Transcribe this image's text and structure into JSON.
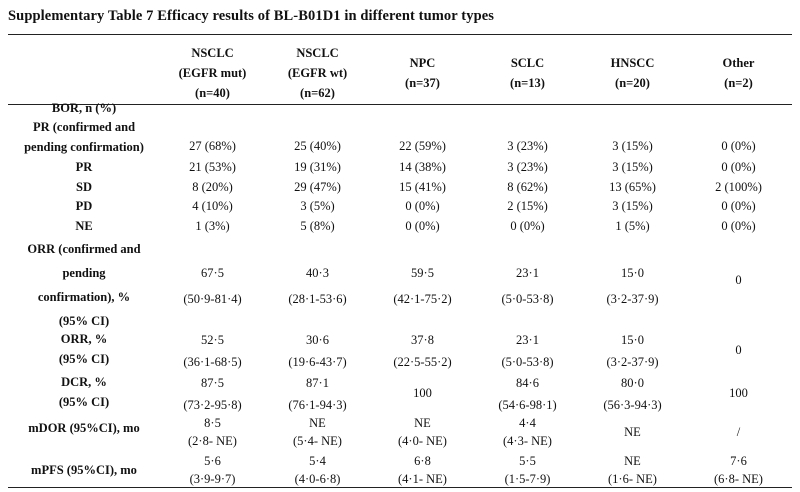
{
  "title": "Supplementary Table 7 Efficacy results of BL-B01D1 in different tumor types",
  "columns": [
    [
      "NSCLC",
      "(EGFR mut)",
      "(n=40)"
    ],
    [
      "NSCLC",
      "(EGFR wt)",
      "(n=62)"
    ],
    [
      "NPC",
      "(n=37)"
    ],
    [
      "SCLC",
      "(n=13)"
    ],
    [
      "HNSCC",
      "(n=20)"
    ],
    [
      "Other",
      "(n=2)"
    ]
  ],
  "rows": [
    {
      "label": [
        "BOR, n (%)"
      ],
      "cells": [
        [],
        [],
        [],
        [],
        [],
        []
      ]
    },
    {
      "label": [
        "PR (confirmed and",
        "pending confirmation)"
      ],
      "cells": [
        [
          "27 (68%)"
        ],
        [
          "25 (40%)"
        ],
        [
          "22 (59%)"
        ],
        [
          "3 (23%)"
        ],
        [
          "3 (15%)"
        ],
        [
          "0 (0%)"
        ]
      ]
    },
    {
      "label": [
        "PR"
      ],
      "cells": [
        [
          "21 (53%)"
        ],
        [
          "19 (31%)"
        ],
        [
          "14 (38%)"
        ],
        [
          "3 (23%)"
        ],
        [
          "3 (15%)"
        ],
        [
          "0 (0%)"
        ]
      ]
    },
    {
      "label": [
        "SD"
      ],
      "cells": [
        [
          "8 (20%)"
        ],
        [
          "29 (47%)"
        ],
        [
          "15 (41%)"
        ],
        [
          "8 (62%)"
        ],
        [
          "13 (65%)"
        ],
        [
          "2 (100%)"
        ]
      ]
    },
    {
      "label": [
        "PD"
      ],
      "cells": [
        [
          "4 (10%)"
        ],
        [
          "3 (5%)"
        ],
        [
          "0 (0%)"
        ],
        [
          "2 (15%)"
        ],
        [
          "3 (15%)"
        ],
        [
          "0 (0%)"
        ]
      ]
    },
    {
      "label": [
        "NE"
      ],
      "cells": [
        [
          "1 (3%)"
        ],
        [
          "5 (8%)"
        ],
        [
          "0 (0%)"
        ],
        [
          "0 (0%)"
        ],
        [
          "1 (5%)"
        ],
        [
          "0 (0%)"
        ]
      ]
    },
    {
      "label": [
        "ORR (confirmed and",
        "pending",
        "confirmation), %",
        "(95% CI)"
      ],
      "cells": [
        [
          "67·5",
          "(50·9-81·4)"
        ],
        [
          "40·3",
          "(28·1-53·6)"
        ],
        [
          "59·5",
          "(42·1-75·2)"
        ],
        [
          "23·1",
          "(5·0-53·8)"
        ],
        [
          "15·0",
          "(3·2-37·9)"
        ],
        [
          "0"
        ]
      ]
    },
    {
      "label": [
        "ORR, %",
        "(95% CI)"
      ],
      "cells": [
        [
          "52·5",
          "(36·1-68·5)"
        ],
        [
          "30·6",
          "(19·6-43·7)"
        ],
        [
          "37·8",
          "(22·5-55·2)"
        ],
        [
          "23·1",
          "(5·0-53·8)"
        ],
        [
          "15·0",
          "(3·2-37·9)"
        ],
        [
          "0"
        ]
      ]
    },
    {
      "label": [
        "DCR, %",
        "(95% CI)"
      ],
      "cells": [
        [
          "87·5",
          "(73·2-95·8)"
        ],
        [
          "87·1",
          "(76·1-94·3)"
        ],
        [
          "100"
        ],
        [
          "84·6",
          "(54·6-98·1)"
        ],
        [
          "80·0",
          "(56·3-94·3)"
        ],
        [
          "100"
        ]
      ]
    },
    {
      "label": [
        "mDOR (95%CI), mo"
      ],
      "cells": [
        [
          "8·5",
          "(2·8- NE)"
        ],
        [
          "NE",
          "(5·4- NE)"
        ],
        [
          "NE",
          "(4·0- NE)"
        ],
        [
          "4·4",
          "(4·3- NE)"
        ],
        [
          "NE"
        ],
        [
          "/"
        ]
      ]
    },
    {
      "label": [
        "mPFS (95%CI), mo"
      ],
      "cells": [
        [
          "5·6",
          "(3·9-9·7)"
        ],
        [
          "5·4",
          "(4·0-6·8)"
        ],
        [
          "6·8",
          "(4·1- NE)"
        ],
        [
          "5·5",
          "(1·5-7·9)"
        ],
        [
          "NE",
          "(1·6- NE)"
        ],
        [
          "7·6",
          "(6·8- NE)"
        ]
      ]
    }
  ]
}
